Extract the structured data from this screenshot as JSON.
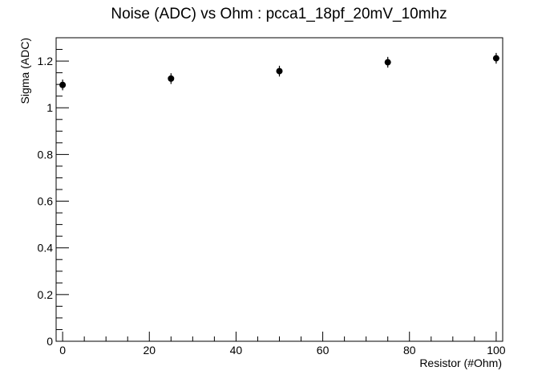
{
  "chart_data": {
    "type": "scatter",
    "title": "Noise (ADC) vs Ohm : pcca1_18pf_20mV_10mhz",
    "xlabel": "Resistor (#Ohm)",
    "ylabel": "Sigma (ADC)",
    "xlim": [
      -1.5,
      101.5
    ],
    "ylim": [
      0,
      1.3
    ],
    "xticks": [
      0,
      20,
      40,
      60,
      80,
      100
    ],
    "xtick_labels": [
      "0",
      "20",
      "40",
      "60",
      "80",
      "100"
    ],
    "yticks": [
      0,
      0.2,
      0.4,
      0.6,
      0.8,
      1,
      1.2
    ],
    "ytick_labels": [
      "0",
      "0.2",
      "0.4",
      "0.6",
      "0.8",
      "1",
      "1.2"
    ],
    "grid": false,
    "legend": "none",
    "points": [
      {
        "x": 0,
        "y": 1.098,
        "yerr": 0.023
      },
      {
        "x": 25,
        "y": 1.125,
        "yerr": 0.023
      },
      {
        "x": 50,
        "y": 1.157,
        "yerr": 0.023
      },
      {
        "x": 75,
        "y": 1.195,
        "yerr": 0.023
      },
      {
        "x": 100,
        "y": 1.212,
        "yerr": 0.023
      }
    ],
    "marker_color": "#000000"
  }
}
